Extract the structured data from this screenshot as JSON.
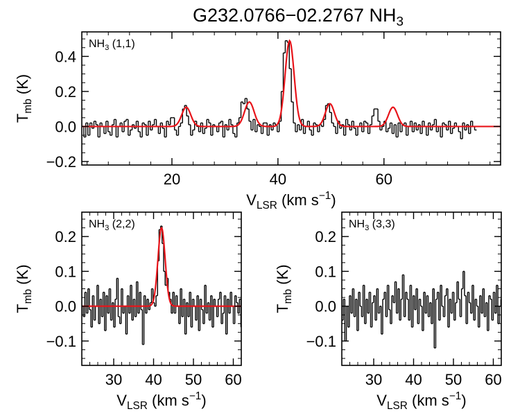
{
  "figure": {
    "title_main": "G232.0766−02.2767 NH",
    "title_sub": "3"
  },
  "colors": {
    "data": "#000000",
    "fit": "#e8141a",
    "frame": "#000000"
  },
  "chart_data": [
    {
      "id": "p11",
      "type": "line",
      "label_main": "NH",
      "label_sub": "3",
      "label_rest": " (1,1)",
      "xlabel_main": "V",
      "xlabel_sub": "LSR",
      "xlabel_rest": " (km s",
      "xlabel_sup": "−1",
      "xlabel_end": ")",
      "ylabel_main": "T",
      "ylabel_sub": "mb",
      "ylabel_rest": " (K)",
      "xlim": [
        3,
        82
      ],
      "ylim": [
        -0.22,
        0.54
      ],
      "xticks": [
        20,
        40,
        60
      ],
      "xtick_labels": [
        "20",
        "40",
        "60"
      ],
      "yticks": [
        -0.2,
        0.0,
        0.2,
        0.4
      ],
      "ytick_labels": [
        "−0.2",
        "0.0",
        "0.2",
        "0.4"
      ],
      "x_start": 3.0,
      "x_step": 0.38,
      "series": [
        {
          "style": "histogram",
          "color": "#000000",
          "y": [
            0.0,
            -0.06,
            0.02,
            -0.05,
            0.02,
            -0.01,
            0.03,
            0.01,
            -0.06,
            0.02,
            0.0,
            -0.04,
            0.03,
            -0.03,
            -0.05,
            0.01,
            0.04,
            -0.06,
            0.0,
            0.02,
            -0.03,
            0.03,
            0.04,
            -0.05,
            -0.02,
            0.01,
            -0.01,
            0.03,
            -0.03,
            -0.06,
            0.02,
            0.01,
            -0.05,
            0.03,
            -0.02,
            0.01,
            0.04,
            0.0,
            -0.04,
            0.02,
            -0.01,
            -0.06,
            0.03,
            0.01,
            0.05,
            0.05,
            -0.02,
            -0.05,
            0.0,
            0.02,
            0.1,
            0.12,
            0.06,
            0.01,
            -0.05,
            -0.02,
            0.03,
            0.0,
            -0.03,
            0.02,
            -0.04,
            -0.01,
            0.04,
            0.02,
            -0.05,
            0.01,
            0.0,
            -0.03,
            0.02,
            0.03,
            -0.06,
            0.01,
            -0.02,
            0.04,
            0.01,
            -0.04,
            -0.06,
            0.02,
            0.05,
            0.14,
            0.13,
            0.16,
            0.1,
            0.03,
            -0.02,
            0.04,
            -0.03,
            0.01,
            0.0,
            -0.04,
            0.02,
            0.02,
            -0.05,
            0.01,
            -0.02,
            0.02,
            0.01,
            -0.03,
            0.03,
            0.2,
            0.42,
            0.49,
            0.48,
            0.33,
            0.14,
            0.02,
            -0.03,
            0.01,
            -0.02,
            0.04,
            -0.04,
            0.0,
            0.03,
            -0.02,
            -0.05,
            0.02,
            0.01,
            -0.03,
            0.01,
            0.0,
            0.04,
            0.12,
            0.13,
            0.08,
            0.02,
            0.0,
            -0.04,
            0.03,
            -0.01,
            0.01,
            -0.05,
            0.04,
            0.01,
            -0.02,
            0.03,
            -0.01,
            -0.05,
            0.0,
            0.02,
            -0.03,
            0.03,
            0.02,
            -0.04,
            0.01,
            0.06,
            0.1,
            0.1,
            0.03,
            -0.02,
            0.0,
            0.03,
            -0.03,
            -0.01,
            0.02,
            -0.04,
            0.01,
            -0.06,
            0.02,
            -0.03,
            0.01,
            0.02,
            -0.05,
            0.0,
            0.03,
            -0.03,
            0.02,
            -0.02,
            0.01,
            -0.04,
            0.03,
            0.0,
            -0.05,
            0.02,
            -0.02,
            0.01,
            0.04,
            -0.03,
            0.0,
            -0.06,
            0.02,
            0.01,
            -0.02,
            0.03,
            -0.04,
            -0.01,
            0.02,
            0.0,
            -0.03,
            -0.07,
            0.02,
            -0.02,
            0.01,
            -0.04,
            0.03,
            0.0,
            -0.02
          ]
        },
        {
          "style": "gaussians",
          "color": "#e8141a",
          "components": [
            {
              "amp": 0.11,
              "center": 22.7,
              "sigma": 0.85
            },
            {
              "amp": 0.14,
              "center": 34.6,
              "sigma": 0.9
            },
            {
              "amp": 0.49,
              "center": 42.2,
              "sigma": 0.85
            },
            {
              "amp": 0.13,
              "center": 49.8,
              "sigma": 0.85
            },
            {
              "amp": 0.11,
              "center": 61.7,
              "sigma": 0.85
            }
          ]
        }
      ]
    },
    {
      "id": "p22",
      "type": "line",
      "label_main": "NH",
      "label_sub": "3",
      "label_rest": " (2,2)",
      "xlabel_main": "V",
      "xlabel_sub": "LSR",
      "xlabel_rest": " (km s",
      "xlabel_sup": "−1",
      "xlabel_end": ")",
      "ylabel_main": "T",
      "ylabel_sub": "mb",
      "ylabel_rest": " (K)",
      "xlim": [
        22,
        62
      ],
      "ylim": [
        -0.17,
        0.27
      ],
      "xticks": [
        30,
        40,
        50,
        60
      ],
      "xtick_labels": [
        "30",
        "40",
        "50",
        "60"
      ],
      "yticks": [
        -0.1,
        0.0,
        0.1,
        0.2
      ],
      "ytick_labels": [
        "−0.1",
        "0.0",
        "0.1",
        "0.2"
      ],
      "x_start": 22.0,
      "x_step": 0.38,
      "series": [
        {
          "style": "histogram",
          "color": "#000000",
          "y": [
            0.0,
            -0.03,
            0.04,
            -0.02,
            0.05,
            -0.01,
            -0.06,
            0.03,
            -0.04,
            0.0,
            0.06,
            -0.05,
            0.02,
            -0.03,
            0.04,
            -0.07,
            0.03,
            -0.02,
            0.05,
            -0.04,
            0.01,
            -0.06,
            0.02,
            0.08,
            -0.03,
            -0.05,
            0.05,
            -0.02,
            0.0,
            -0.08,
            0.03,
            -0.02,
            0.06,
            -0.04,
            0.02,
            -0.03,
            0.07,
            -0.02,
            0.04,
            -0.01,
            -0.11,
            0.03,
            -0.02,
            0.02,
            -0.01,
            0.01,
            0.05,
            0.01,
            0.0,
            0.03,
            0.13,
            0.22,
            0.23,
            0.18,
            0.1,
            0.06,
            0.08,
            0.04,
            0.02,
            -0.02,
            0.04,
            -0.02,
            0.03,
            0.0,
            -0.05,
            0.05,
            -0.03,
            0.02,
            -0.08,
            0.01,
            -0.03,
            0.04,
            -0.06,
            0.02,
            0.0,
            -0.04,
            0.03,
            -0.07,
            0.02,
            -0.01,
            -0.05,
            0.06,
            -0.02,
            0.01,
            -0.04,
            0.03,
            -0.06,
            0.02,
            0.0,
            -0.03,
            0.02,
            0.04,
            -0.05,
            -0.02,
            0.03,
            -0.08,
            0.02,
            -0.02,
            0.04,
            0.0,
            -0.05,
            0.03,
            0.01,
            -0.02,
            0.02,
            -0.06,
            0.04
          ]
        },
        {
          "style": "gaussians",
          "color": "#e8141a",
          "components": [
            {
              "amp": 0.225,
              "center": 42.0,
              "sigma": 0.9
            }
          ]
        }
      ]
    },
    {
      "id": "p33",
      "type": "line",
      "label_main": "NH",
      "label_sub": "3",
      "label_rest": " (3,3)",
      "xlabel_main": "V",
      "xlabel_sub": "LSR",
      "xlabel_rest": " (km s",
      "xlabel_sup": "−1",
      "xlabel_end": ")",
      "ylabel_main": "T",
      "ylabel_sub": "mb",
      "ylabel_rest": " (K)",
      "xlim": [
        22,
        62
      ],
      "ylim": [
        -0.17,
        0.27
      ],
      "xticks": [
        30,
        40,
        50,
        60
      ],
      "xtick_labels": [
        "30",
        "40",
        "50",
        "60"
      ],
      "yticks": [
        -0.1,
        0.0,
        0.1,
        0.2
      ],
      "ytick_labels": [
        "−0.1",
        "0.0",
        "0.1",
        "0.2"
      ],
      "x_start": 22.0,
      "x_step": 0.38,
      "series": [
        {
          "style": "histogram",
          "color": "#000000",
          "y": [
            -0.04,
            0.02,
            -0.1,
            0.0,
            -0.06,
            0.03,
            -0.02,
            0.05,
            -0.03,
            0.02,
            -0.07,
            0.04,
            0.0,
            -0.03,
            0.06,
            -0.05,
            0.02,
            -0.02,
            0.04,
            -0.06,
            0.01,
            0.03,
            -0.04,
            0.05,
            -0.02,
            0.0,
            -0.08,
            0.02,
            0.04,
            -0.03,
            0.06,
            -0.01,
            -0.05,
            0.03,
            0.01,
            0.07,
            -0.02,
            0.05,
            -0.04,
            0.02,
            0.09,
            -0.03,
            0.04,
            0.02,
            -0.04,
            0.06,
            -0.06,
            0.03,
            -0.01,
            0.05,
            -0.05,
            0.02,
            0.0,
            -0.07,
            0.04,
            -0.02,
            0.03,
            -0.03,
            0.01,
            -0.05,
            0.05,
            -0.12,
            0.02,
            0.04,
            -0.04,
            0.06,
            0.0,
            -0.03,
            0.03,
            0.05,
            -0.06,
            0.02,
            -0.02,
            0.04,
            -0.04,
            0.01,
            0.07,
            0.02,
            -0.03,
            0.05,
            0.1,
            0.03,
            -0.05,
            0.04,
            0.01,
            -0.02,
            0.06,
            -0.04,
            0.02,
            0.0,
            -0.06,
            0.03,
            -0.02,
            0.05,
            -0.03,
            0.01,
            -0.07,
            0.03,
            0.02,
            -0.04,
            0.04,
            -0.02,
            0.06,
            -0.05,
            0.0,
            0.02,
            0.04
          ]
        }
      ]
    }
  ]
}
